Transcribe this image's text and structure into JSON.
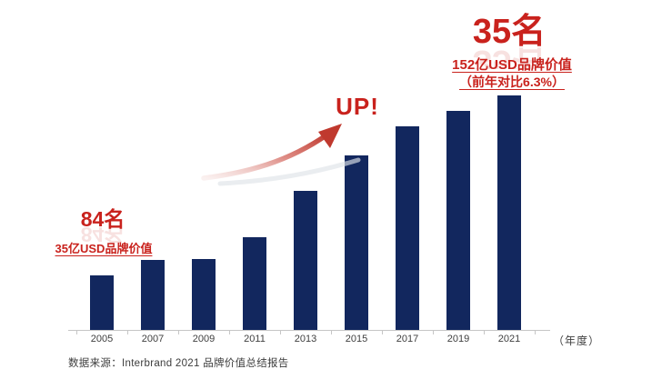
{
  "window": {
    "background": "#ffffff"
  },
  "colors": {
    "bar": "#12275e",
    "accent_red": "#c9221d",
    "axis": "#c6c6c6",
    "tick_label_text": "#3f3f3f",
    "source_text": "#3c3c3c",
    "arrow_gradient_start": "#edc6c2",
    "arrow_gradient_end": "#c0392e",
    "arrow_shadow": "#dfe3e8"
  },
  "annotations": {
    "rank_2005": "84名",
    "value_2005": "35亿USD品牌价值",
    "up_label": "UP!",
    "rank_2021": "35名",
    "value_2021_line1": "152亿USD品牌价值",
    "value_2021_line2": "（前年对比6.3%）",
    "axis_unit": "（年度）"
  },
  "source": "数据来源：Interbrand 2021 品牌价值总结报告",
  "chart_data": {
    "type": "bar",
    "categories": [
      "2005",
      "2007",
      "2009",
      "2011",
      "2013",
      "2015",
      "2017",
      "2019",
      "2021"
    ],
    "values": [
      35,
      45,
      46,
      60,
      90,
      113,
      132,
      142,
      152
    ],
    "unit": "亿USD",
    "title": "",
    "xlabel": "（年度）",
    "ylabel": "",
    "ylim": [
      0,
      160
    ],
    "grid": false,
    "legend": "none",
    "bar_color": "#12275e",
    "annotations": [
      {
        "target": "2005",
        "rank": "84名",
        "value_label": "35亿USD品牌价值"
      },
      {
        "target": "2021",
        "rank": "35名",
        "value_label": "152亿USD品牌价值",
        "yoy": "（前年对比6.3%）"
      },
      {
        "type": "trend_arrow",
        "label": "UP!"
      }
    ]
  }
}
